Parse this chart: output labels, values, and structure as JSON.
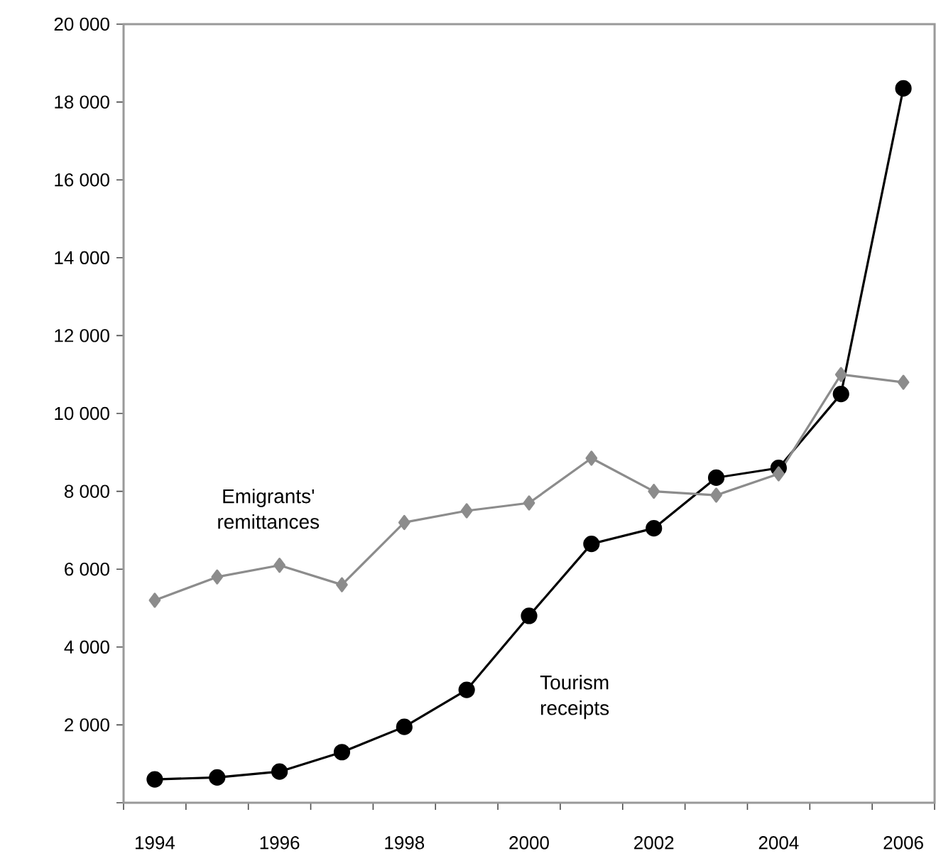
{
  "chart_data": {
    "type": "line",
    "categories": [
      "1994",
      null,
      "1996",
      null,
      "1998",
      null,
      "2000",
      null,
      "2002",
      null,
      "2004",
      null,
      "2006"
    ],
    "series": [
      {
        "name": "Emigrants' remittances",
        "color": "#8c8c8c",
        "marker": "diamond",
        "values": [
          5200,
          5800,
          6100,
          5600,
          7200,
          7500,
          7700,
          8850,
          8000,
          7900,
          8450,
          11000,
          10800
        ]
      },
      {
        "name": "Tourism receipts",
        "color": "#000000",
        "marker": "circle",
        "values": [
          600,
          650,
          800,
          1300,
          1950,
          2900,
          4800,
          6650,
          7050,
          8350,
          8600,
          10500,
          18350
        ]
      }
    ],
    "ylim": [
      0,
      20000
    ],
    "yticks": [
      {
        "value": 0,
        "label": null
      },
      {
        "value": 2000,
        "label": "2 000"
      },
      {
        "value": 4000,
        "label": "4 000"
      },
      {
        "value": 6000,
        "label": "6 000"
      },
      {
        "value": 8000,
        "label": "8 000"
      },
      {
        "value": 10000,
        "label": "10 000"
      },
      {
        "value": 12000,
        "label": "12 000"
      },
      {
        "value": 14000,
        "label": "14 000"
      },
      {
        "value": 16000,
        "label": "16 000"
      },
      {
        "value": 18000,
        "label": "18 000"
      },
      {
        "value": 20000,
        "label": "20 000"
      }
    ]
  }
}
